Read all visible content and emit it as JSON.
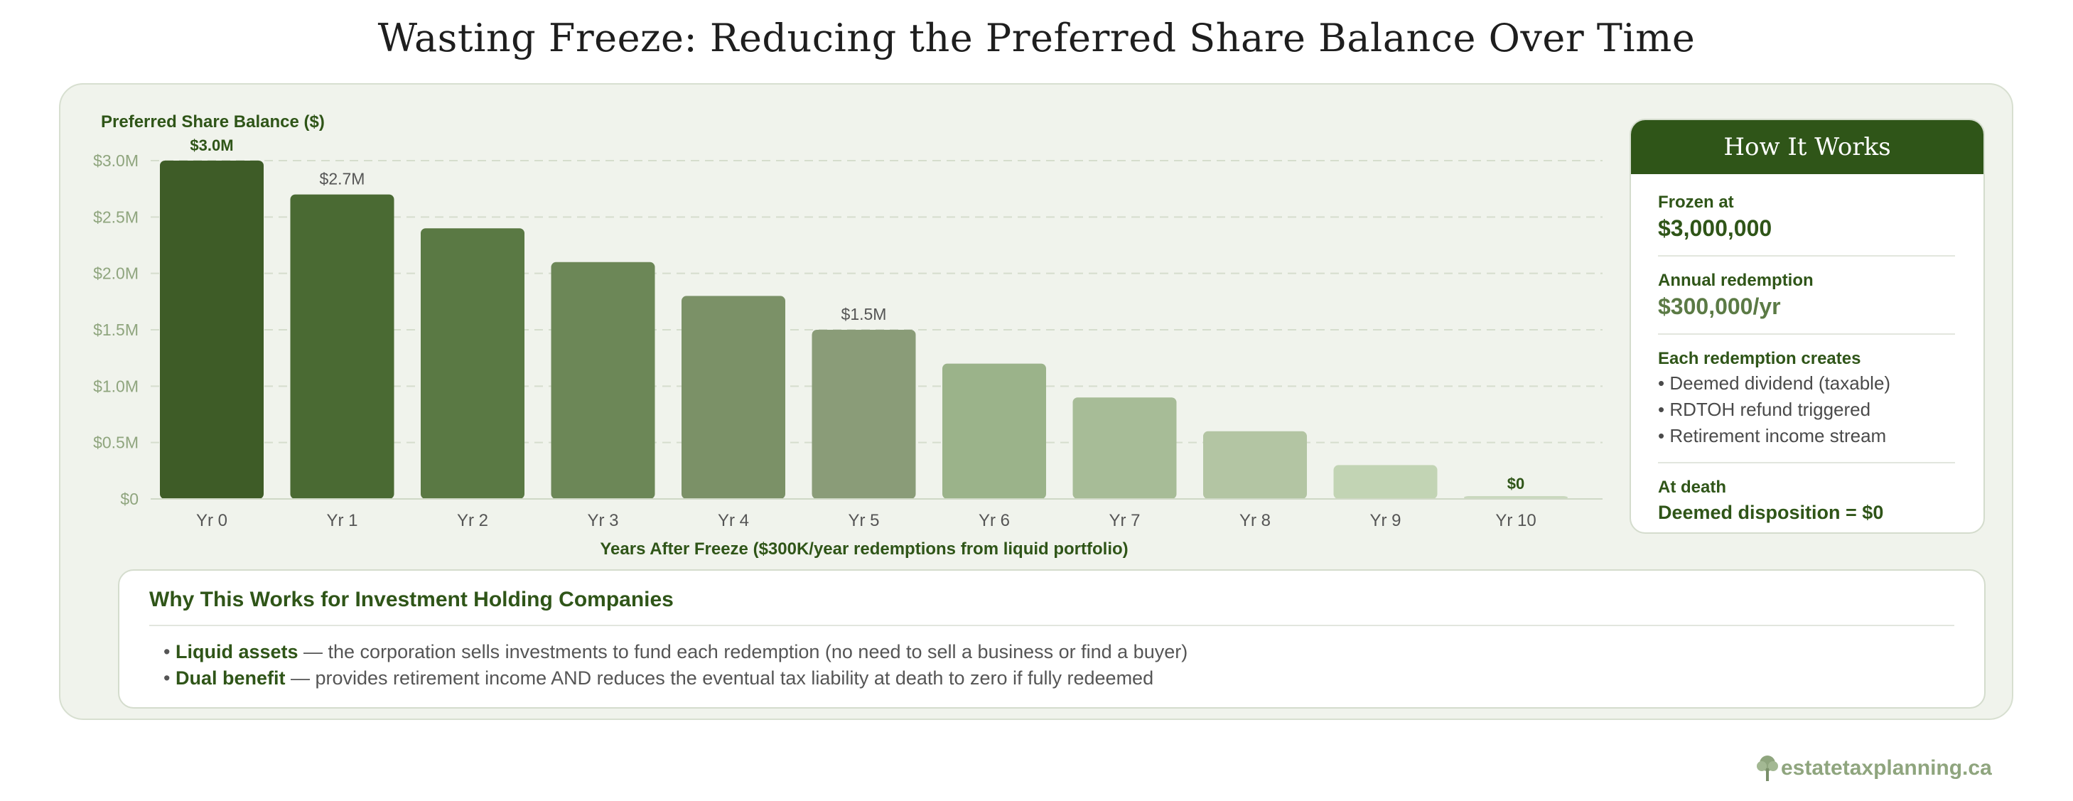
{
  "title": "Wasting Freeze: Reducing the Preferred Share Balance Over Time",
  "chart_data": {
    "type": "bar",
    "ylabel": "Preferred Share Balance ($)",
    "xlabel": "Years After Freeze ($300K/year redemptions from liquid portfolio)",
    "categories": [
      "Yr 0",
      "Yr 1",
      "Yr 2",
      "Yr 3",
      "Yr 4",
      "Yr 5",
      "Yr 6",
      "Yr 7",
      "Yr 8",
      "Yr 9",
      "Yr 10"
    ],
    "values": [
      3000000,
      2700000,
      2400000,
      2100000,
      1800000,
      1500000,
      1200000,
      900000,
      600000,
      300000,
      0
    ],
    "ylim": [
      0,
      3000000
    ],
    "yticks": [
      {
        "value": 0,
        "label": "$0"
      },
      {
        "value": 500000,
        "label": "$0.5M"
      },
      {
        "value": 1000000,
        "label": "$1.0M"
      },
      {
        "value": 1500000,
        "label": "$1.5M"
      },
      {
        "value": 2000000,
        "label": "$2.0M"
      },
      {
        "value": 2500000,
        "label": "$2.5M"
      },
      {
        "value": 3000000,
        "label": "$3.0M"
      }
    ],
    "data_labels": [
      {
        "index": 0,
        "text": "$3.0M",
        "bold": true
      },
      {
        "index": 1,
        "text": "$2.7M",
        "bold": false
      },
      {
        "index": 5,
        "text": "$1.5M",
        "bold": false
      },
      {
        "index": 10,
        "text": "$0",
        "bold": true
      }
    ],
    "bar_colors": [
      "#3e5c27",
      "#4a6a33",
      "#5a7944",
      "#6c8757",
      "#7b9167",
      "#8a9c78",
      "#9bb38a",
      "#a7bc97",
      "#b3c5a3",
      "#c2d4b4",
      "#cad8be"
    ],
    "grid": true
  },
  "how": {
    "title": "How It Works",
    "frozen_label": "Frozen at",
    "frozen_value": "$3,000,000",
    "redemption_label": "Annual redemption",
    "redemption_value": "$300,000/yr",
    "creates_label": "Each redemption creates",
    "creates_items": [
      "• Deemed dividend (taxable)",
      "• RDTOH refund triggered",
      "• Retirement income stream"
    ],
    "death_label": "At death",
    "death_value": "Deemed disposition = $0"
  },
  "why": {
    "title": "Why This Works for Investment Holding Companies",
    "items": [
      {
        "bullet": "• ",
        "bold": "Liquid assets",
        "text": " — the corporation sells investments to fund each redemption (no need to sell a business or find a buyer)"
      },
      {
        "bullet": "• ",
        "bold": "Dual benefit",
        "text": " — provides retirement income AND reduces the eventual tax liability at death to zero if fully redeemed"
      }
    ]
  },
  "brand": {
    "text": "estatetaxplanning.ca",
    "icon": "tree-icon"
  },
  "colors": {
    "accent": "#2f5518",
    "panel_bg": "#f0f3ec",
    "axis_text": "#8fa57e"
  }
}
